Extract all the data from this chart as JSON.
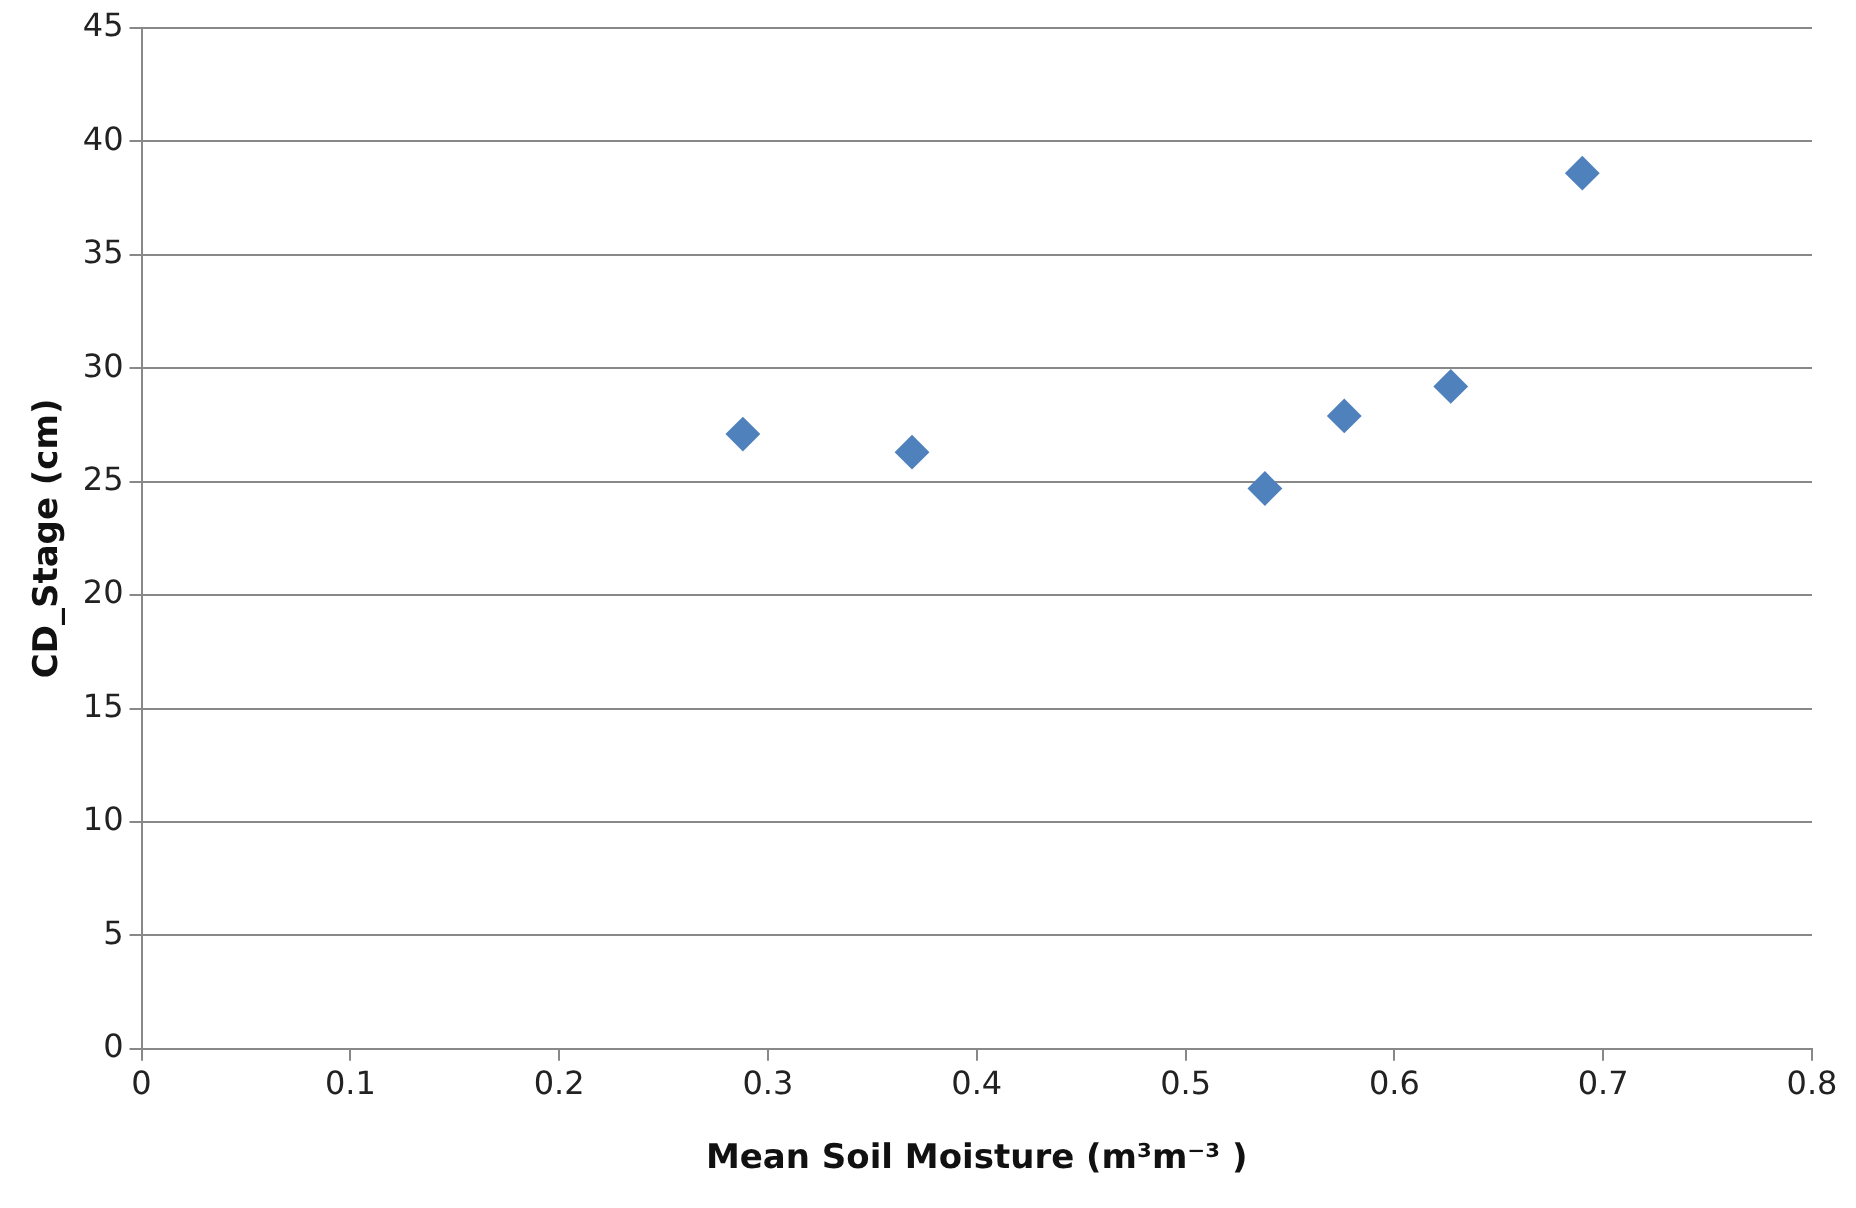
{
  "chart_data": {
    "type": "scatter",
    "xlabel": "Mean Soil Moisture (m³m⁻³ )",
    "ylabel": "CD_Stage (cm)",
    "x": [
      0.288,
      0.369,
      0.538,
      0.576,
      0.627,
      0.69
    ],
    "values": [
      27.1,
      26.3,
      24.7,
      27.9,
      29.2,
      38.6
    ],
    "color": "#4f81bd",
    "marker": "diamond",
    "xlim": [
      0,
      0.8
    ],
    "xticks": [
      0,
      0.1,
      0.2,
      0.3,
      0.4,
      0.5,
      0.6,
      0.7,
      0.8
    ],
    "ylim": [
      0,
      45
    ],
    "yticks": [
      0,
      5,
      10,
      15,
      20,
      25,
      30,
      35,
      40,
      45
    ],
    "grid": "y",
    "legend": false
  }
}
